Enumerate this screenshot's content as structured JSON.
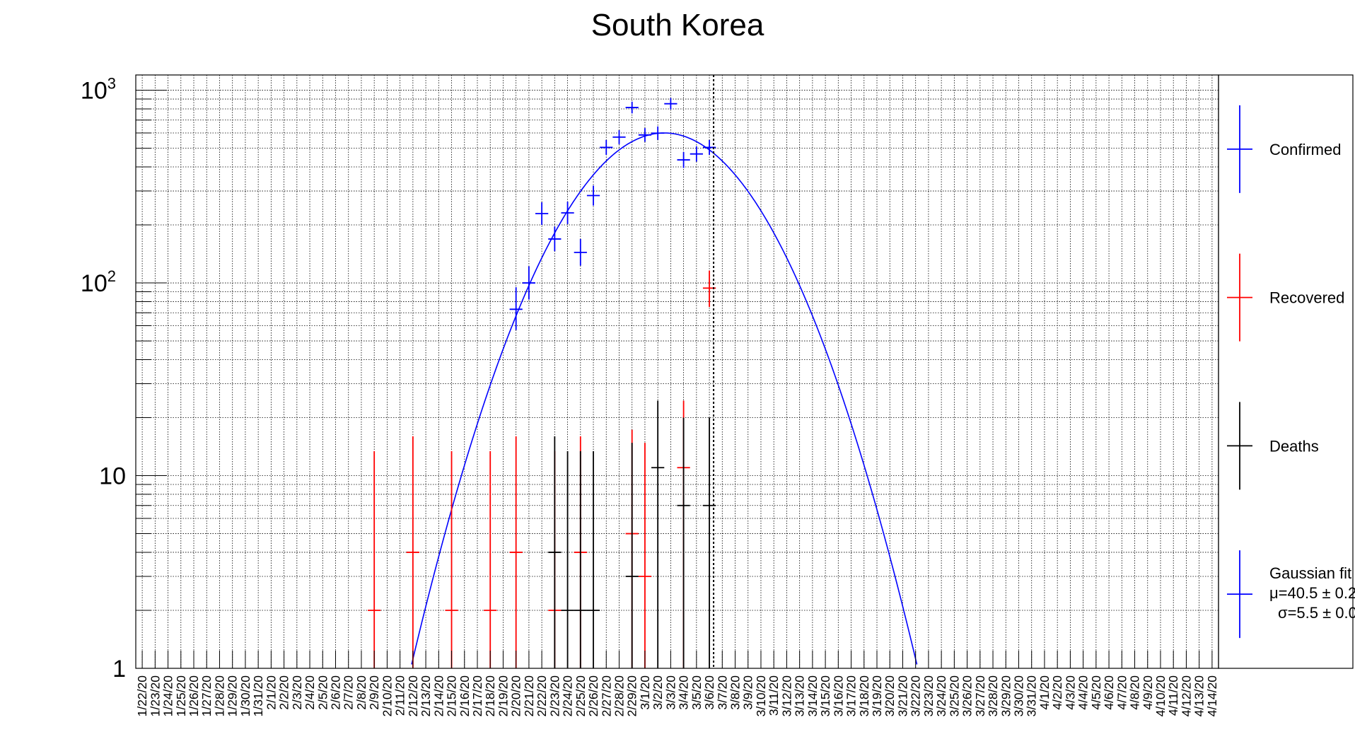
{
  "chart_data": {
    "type": "scatter",
    "title": "South Korea",
    "y_scale": "log",
    "ylim": [
      1,
      1200
    ],
    "y_ticks": [
      {
        "value": 1,
        "base": "1",
        "exp": ""
      },
      {
        "value": 10,
        "base": "10",
        "exp": ""
      },
      {
        "value": 100,
        "base": "10",
        "exp": "2"
      },
      {
        "value": 1000,
        "base": "10",
        "exp": "3"
      }
    ],
    "grid": true,
    "legend_position": "right",
    "x_labels": [
      "1/22/20",
      "1/23/20",
      "1/24/20",
      "1/25/20",
      "1/26/20",
      "1/27/20",
      "1/28/20",
      "1/29/20",
      "1/30/20",
      "1/31/20",
      "2/1/20",
      "2/2/20",
      "2/3/20",
      "2/4/20",
      "2/5/20",
      "2/6/20",
      "2/7/20",
      "2/8/20",
      "2/9/20",
      "2/10/20",
      "2/11/20",
      "2/12/20",
      "2/13/20",
      "2/14/20",
      "2/15/20",
      "2/16/20",
      "2/17/20",
      "2/18/20",
      "2/19/20",
      "2/20/20",
      "2/21/20",
      "2/22/20",
      "2/23/20",
      "2/24/20",
      "2/25/20",
      "2/26/20",
      "2/27/20",
      "2/28/20",
      "2/29/20",
      "3/1/20",
      "3/2/20",
      "3/3/20",
      "3/4/20",
      "3/5/20",
      "3/6/20",
      "3/7/20",
      "3/8/20",
      "3/9/20",
      "3/10/20",
      "3/11/20",
      "3/12/20",
      "3/13/20",
      "3/14/20",
      "3/15/20",
      "3/16/20",
      "3/17/20",
      "3/18/20",
      "3/19/20",
      "3/20/20",
      "3/21/20",
      "3/22/20",
      "3/23/20",
      "3/24/20",
      "3/25/20",
      "3/26/20",
      "3/27/20",
      "3/28/20",
      "3/29/20",
      "3/30/20",
      "3/31/20",
      "4/1/20",
      "4/2/20",
      "4/3/20",
      "4/4/20",
      "4/5/20",
      "4/6/20",
      "4/7/20",
      "4/8/20",
      "4/9/20",
      "4/10/20",
      "4/11/20",
      "4/12/20",
      "4/13/20",
      "4/14/20"
    ],
    "vertical_marker": "3/6/20",
    "series": [
      {
        "name": "Confirmed",
        "color": "#0000ff",
        "points": [
          {
            "x": "2/20/20",
            "y": 73,
            "y_low": 57,
            "y_high": 95
          },
          {
            "x": "2/21/20",
            "y": 100,
            "y_low": 82,
            "y_high": 122
          },
          {
            "x": "2/22/20",
            "y": 229,
            "y_low": 200,
            "y_high": 262
          },
          {
            "x": "2/23/20",
            "y": 169,
            "y_low": 146,
            "y_high": 196
          },
          {
            "x": "2/24/20",
            "y": 231,
            "y_low": 202,
            "y_high": 264
          },
          {
            "x": "2/25/20",
            "y": 144,
            "y_low": 123,
            "y_high": 169
          },
          {
            "x": "2/26/20",
            "y": 284,
            "y_low": 252,
            "y_high": 320
          },
          {
            "x": "2/27/20",
            "y": 505,
            "y_low": 462,
            "y_high": 552
          },
          {
            "x": "2/28/20",
            "y": 571,
            "y_low": 525,
            "y_high": 620
          },
          {
            "x": "2/29/20",
            "y": 813,
            "y_low": 758,
            "y_high": 872
          },
          {
            "x": "3/1/20",
            "y": 586,
            "y_low": 540,
            "y_high": 636
          },
          {
            "x": "3/2/20",
            "y": 599,
            "y_low": 552,
            "y_high": 649
          },
          {
            "x": "3/3/20",
            "y": 851,
            "y_low": 795,
            "y_high": 911
          },
          {
            "x": "3/4/20",
            "y": 435,
            "y_low": 395,
            "y_high": 478
          },
          {
            "x": "3/5/20",
            "y": 467,
            "y_low": 426,
            "y_high": 512
          },
          {
            "x": "3/6/20",
            "y": 505,
            "y_low": 462,
            "y_high": 552
          }
        ]
      },
      {
        "name": "Recovered",
        "color": "#ff0000",
        "points": [
          {
            "x": "2/9/20",
            "y": 2,
            "y_low": 1,
            "y_high": 13.4
          },
          {
            "x": "2/12/20",
            "y": 4,
            "y_low": 1,
            "y_high": 16
          },
          {
            "x": "2/15/20",
            "y": 2,
            "y_low": 1,
            "y_high": 13.4
          },
          {
            "x": "2/18/20",
            "y": 2,
            "y_low": 1,
            "y_high": 13.4
          },
          {
            "x": "2/20/20",
            "y": 4,
            "y_low": 1,
            "y_high": 16
          },
          {
            "x": "2/23/20",
            "y": 2,
            "y_low": 1,
            "y_high": 13.4
          },
          {
            "x": "2/25/20",
            "y": 4,
            "y_low": 1,
            "y_high": 16
          },
          {
            "x": "2/29/20",
            "y": 5,
            "y_low": 1,
            "y_high": 17.3
          },
          {
            "x": "3/1/20",
            "y": 3,
            "y_low": 1,
            "y_high": 14.8
          },
          {
            "x": "3/4/20",
            "y": 11,
            "y_low": 1,
            "y_high": 24.5
          },
          {
            "x": "3/6/20",
            "y": 94,
            "y_low": 75,
            "y_high": 116
          }
        ]
      },
      {
        "name": "Deaths",
        "color": "#000000",
        "points": [
          {
            "x": "2/23/20",
            "y": 4,
            "y_low": 1,
            "y_high": 16
          },
          {
            "x": "2/24/20",
            "y": 2,
            "y_low": 1,
            "y_high": 13.4
          },
          {
            "x": "2/25/20",
            "y": 2,
            "y_low": 1,
            "y_high": 13.4
          },
          {
            "x": "2/26/20",
            "y": 2,
            "y_low": 1,
            "y_high": 13.4
          },
          {
            "x": "2/29/20",
            "y": 3,
            "y_low": 1,
            "y_high": 14.8
          },
          {
            "x": "3/2/20",
            "y": 11,
            "y_low": 1,
            "y_high": 24.5
          },
          {
            "x": "3/4/20",
            "y": 7,
            "y_low": 1,
            "y_high": 20
          },
          {
            "x": "3/6/20",
            "y": 7,
            "y_low": 1,
            "y_high": 20
          }
        ]
      }
    ],
    "fit": {
      "name": "Gaussian fit",
      "color": "#0000ff",
      "mu_label": "μ=40.5 ± 0.2",
      "sigma_label": "σ=5.5 ± 0.0",
      "mu": 40.5,
      "sigma": 5.5,
      "amplitude": 600
    },
    "legend": [
      {
        "label": "Confirmed",
        "color": "#0000ff"
      },
      {
        "label": "Recovered",
        "color": "#ff0000"
      },
      {
        "label": "Deaths",
        "color": "#000000"
      },
      {
        "label": "Gaussian fit",
        "color": "#0000ff"
      }
    ]
  }
}
